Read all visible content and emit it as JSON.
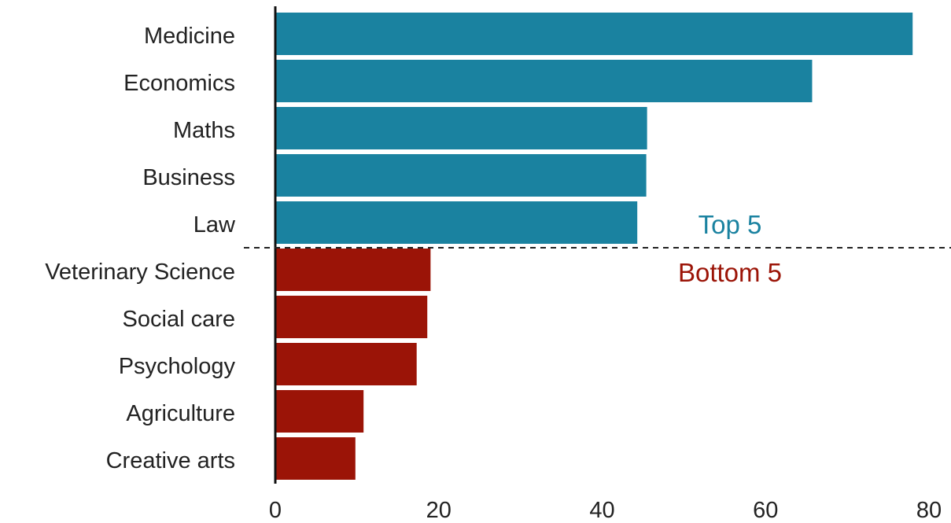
{
  "chart_data": {
    "type": "bar",
    "orientation": "horizontal",
    "categories": [
      "Medicine",
      "Economics",
      "Maths",
      "Business",
      "Law",
      "Veterinary Science",
      "Social care",
      "Psychology",
      "Agriculture",
      "Creative arts"
    ],
    "values": [
      78,
      65.7,
      45.5,
      45.4,
      44.3,
      19,
      18.6,
      17.3,
      10.8,
      9.8
    ],
    "groups": [
      {
        "label": "Top 5",
        "color": "#1a82a0",
        "count": 5
      },
      {
        "label": "Bottom 5",
        "color": "#9b1407",
        "count": 5
      }
    ],
    "xlim": [
      0,
      80
    ],
    "xticks": [
      0,
      20,
      40,
      60,
      80
    ],
    "divider": "dashed",
    "grid": false
  }
}
